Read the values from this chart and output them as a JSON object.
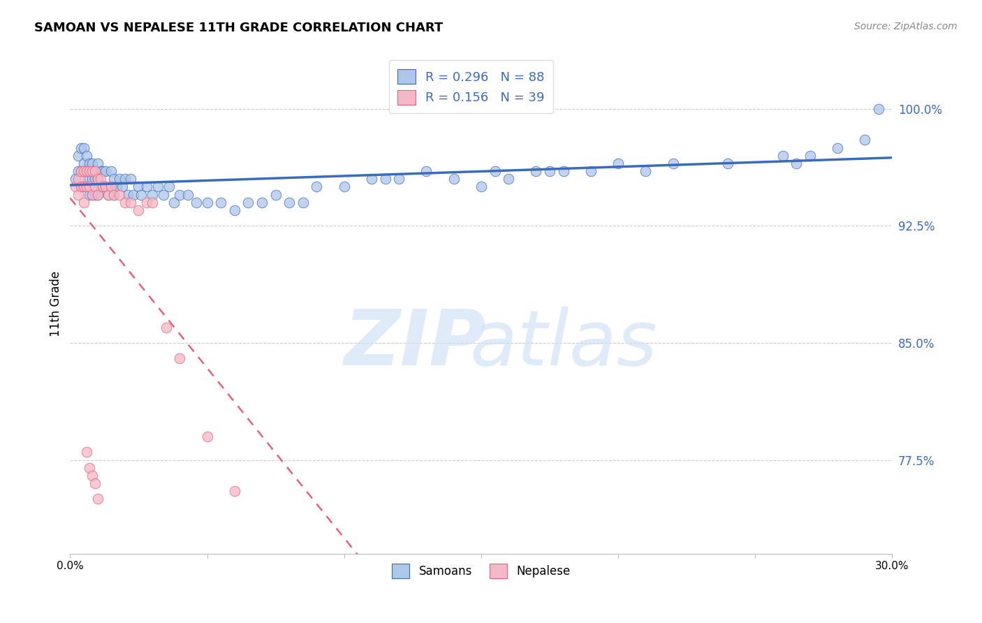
{
  "title": "SAMOAN VS NEPALESE 11TH GRADE CORRELATION CHART",
  "source": "Source: ZipAtlas.com",
  "ylabel": "11th Grade",
  "yticks": [
    "77.5%",
    "85.0%",
    "92.5%",
    "100.0%"
  ],
  "ytick_vals": [
    0.775,
    0.85,
    0.925,
    1.0
  ],
  "xlim": [
    0.0,
    0.3
  ],
  "ylim": [
    0.715,
    1.035
  ],
  "samoan_color": "#aec6e8",
  "nepalese_color": "#f4b8c8",
  "samoan_line_color": "#3a6bbf",
  "nepalese_line_color": "#e8607a",
  "R_samoan": 0.296,
  "N_samoan": 88,
  "R_nepalese": 0.156,
  "N_nepalese": 39,
  "samoan_x": [
    0.002,
    0.003,
    0.003,
    0.004,
    0.004,
    0.004,
    0.005,
    0.005,
    0.005,
    0.005,
    0.006,
    0.006,
    0.006,
    0.007,
    0.007,
    0.007,
    0.007,
    0.008,
    0.008,
    0.008,
    0.008,
    0.009,
    0.009,
    0.009,
    0.01,
    0.01,
    0.01,
    0.011,
    0.011,
    0.012,
    0.012,
    0.013,
    0.013,
    0.014,
    0.015,
    0.015,
    0.016,
    0.016,
    0.017,
    0.018,
    0.019,
    0.02,
    0.021,
    0.022,
    0.023,
    0.025,
    0.026,
    0.028,
    0.03,
    0.032,
    0.034,
    0.036,
    0.038,
    0.04,
    0.043,
    0.046,
    0.05,
    0.055,
    0.06,
    0.065,
    0.07,
    0.075,
    0.08,
    0.09,
    0.1,
    0.11,
    0.12,
    0.13,
    0.14,
    0.15,
    0.16,
    0.17,
    0.18,
    0.19,
    0.2,
    0.21,
    0.22,
    0.24,
    0.26,
    0.27,
    0.28,
    0.29,
    0.295,
    0.265,
    0.175,
    0.155,
    0.115,
    0.085
  ],
  "samoan_y": [
    0.955,
    0.97,
    0.96,
    0.975,
    0.96,
    0.95,
    0.975,
    0.965,
    0.96,
    0.95,
    0.97,
    0.96,
    0.95,
    0.965,
    0.96,
    0.955,
    0.945,
    0.965,
    0.96,
    0.955,
    0.945,
    0.96,
    0.955,
    0.945,
    0.965,
    0.955,
    0.945,
    0.96,
    0.95,
    0.96,
    0.95,
    0.96,
    0.95,
    0.945,
    0.96,
    0.95,
    0.955,
    0.945,
    0.95,
    0.955,
    0.95,
    0.955,
    0.945,
    0.955,
    0.945,
    0.95,
    0.945,
    0.95,
    0.945,
    0.95,
    0.945,
    0.95,
    0.94,
    0.945,
    0.945,
    0.94,
    0.94,
    0.94,
    0.935,
    0.94,
    0.94,
    0.945,
    0.94,
    0.95,
    0.95,
    0.955,
    0.955,
    0.96,
    0.955,
    0.95,
    0.955,
    0.96,
    0.96,
    0.96,
    0.965,
    0.96,
    0.965,
    0.965,
    0.97,
    0.97,
    0.975,
    0.98,
    1.0,
    0.965,
    0.96,
    0.96,
    0.955,
    0.94
  ],
  "nepalese_x": [
    0.002,
    0.003,
    0.003,
    0.004,
    0.004,
    0.005,
    0.005,
    0.005,
    0.006,
    0.006,
    0.007,
    0.007,
    0.008,
    0.008,
    0.009,
    0.009,
    0.01,
    0.01,
    0.011,
    0.012,
    0.013,
    0.014,
    0.015,
    0.016,
    0.018,
    0.02,
    0.022,
    0.025,
    0.028,
    0.03,
    0.035,
    0.04,
    0.05,
    0.06,
    0.006,
    0.007,
    0.008,
    0.009,
    0.01
  ],
  "nepalese_y": [
    0.95,
    0.955,
    0.945,
    0.96,
    0.95,
    0.96,
    0.95,
    0.94,
    0.96,
    0.95,
    0.96,
    0.95,
    0.96,
    0.945,
    0.96,
    0.95,
    0.955,
    0.945,
    0.955,
    0.95,
    0.95,
    0.945,
    0.95,
    0.945,
    0.945,
    0.94,
    0.94,
    0.935,
    0.94,
    0.94,
    0.86,
    0.84,
    0.79,
    0.755,
    0.78,
    0.77,
    0.765,
    0.76,
    0.75
  ]
}
